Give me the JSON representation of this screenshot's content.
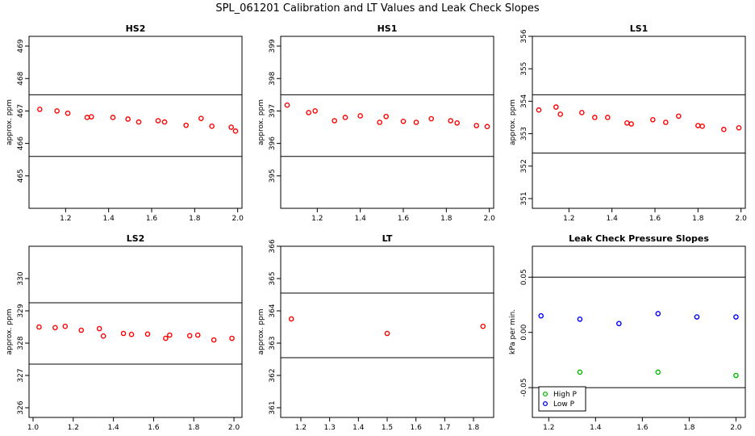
{
  "page_title": "SPL_061201  Calibration and LT Values and Leak Check Slopes",
  "chart_data": [
    {
      "type": "scatter",
      "title": "HS2",
      "ylabel": "approx. ppm",
      "xlim": [
        1.03,
        2.02
      ],
      "ylim": [
        464.0,
        469.3
      ],
      "xticks": [
        "1.2",
        "1.4",
        "1.6",
        "1.8",
        "2.0"
      ],
      "yticks": [
        "465",
        "466",
        "467",
        "468",
        "469"
      ],
      "hlines": [
        467.5,
        465.6
      ],
      "series": [
        {
          "color": "#ff0000",
          "x": [
            1.08,
            1.16,
            1.21,
            1.3,
            1.32,
            1.42,
            1.49,
            1.54,
            1.63,
            1.66,
            1.76,
            1.83,
            1.88,
            1.97,
            1.99
          ],
          "y": [
            467.05,
            467.0,
            466.93,
            466.8,
            466.82,
            466.8,
            466.75,
            466.66,
            466.7,
            466.66,
            466.56,
            466.77,
            466.53,
            466.5,
            466.38
          ]
        }
      ]
    },
    {
      "type": "scatter",
      "title": "HS1",
      "ylabel": "approx. ppm",
      "xlim": [
        1.03,
        2.02
      ],
      "ylim": [
        394.0,
        399.3
      ],
      "xticks": [
        "1.2",
        "1.4",
        "1.6",
        "1.8",
        "2.0"
      ],
      "yticks": [
        "395",
        "396",
        "397",
        "398",
        "399"
      ],
      "hlines": [
        397.5,
        395.6
      ],
      "series": [
        {
          "color": "#ff0000",
          "x": [
            1.06,
            1.16,
            1.19,
            1.28,
            1.33,
            1.4,
            1.49,
            1.52,
            1.6,
            1.66,
            1.73,
            1.82,
            1.85,
            1.94,
            1.99
          ],
          "y": [
            397.18,
            396.95,
            397.0,
            396.7,
            396.8,
            396.85,
            396.65,
            396.83,
            396.68,
            396.65,
            396.76,
            396.7,
            396.63,
            396.55,
            396.52
          ]
        }
      ]
    },
    {
      "type": "scatter",
      "title": "LS1",
      "ylabel": "approx. ppm",
      "xlim": [
        1.03,
        2.02
      ],
      "ylim": [
        350.7,
        356.0
      ],
      "xticks": [
        "1.2",
        "1.4",
        "1.6",
        "1.8",
        "2.0"
      ],
      "yticks": [
        "351",
        "352",
        "353",
        "354",
        "355",
        "356"
      ],
      "hlines": [
        354.2,
        352.4
      ],
      "series": [
        {
          "color": "#ff0000",
          "x": [
            1.06,
            1.14,
            1.16,
            1.26,
            1.32,
            1.38,
            1.47,
            1.49,
            1.59,
            1.65,
            1.71,
            1.8,
            1.82,
            1.92,
            1.99
          ],
          "y": [
            353.73,
            353.82,
            353.6,
            353.65,
            353.5,
            353.5,
            353.33,
            353.3,
            353.43,
            353.35,
            353.54,
            353.25,
            353.23,
            353.13,
            353.18
          ]
        }
      ]
    },
    {
      "type": "scatter",
      "title": "LS2",
      "ylabel": "approx. ppm",
      "xlim": [
        0.98,
        2.04
      ],
      "ylim": [
        325.7,
        331.0
      ],
      "xticks": [
        "1.0",
        "1.2",
        "1.4",
        "1.6",
        "1.8",
        "2.0"
      ],
      "yticks": [
        "326",
        "327",
        "328",
        "329",
        "330"
      ],
      "hlines": [
        329.25,
        327.35
      ],
      "series": [
        {
          "color": "#ff0000",
          "x": [
            1.03,
            1.11,
            1.16,
            1.24,
            1.33,
            1.35,
            1.45,
            1.49,
            1.57,
            1.66,
            1.68,
            1.78,
            1.82,
            1.9,
            1.99
          ],
          "y": [
            328.5,
            328.48,
            328.52,
            328.4,
            328.45,
            328.22,
            328.3,
            328.27,
            328.28,
            328.15,
            328.25,
            328.23,
            328.25,
            328.1,
            328.15
          ]
        }
      ]
    },
    {
      "type": "scatter",
      "title": "LT",
      "ylabel": "approx. ppm",
      "xlim": [
        1.13,
        1.87
      ],
      "ylim": [
        360.7,
        366.0
      ],
      "xticks": [
        "1.2",
        "1.3",
        "1.4",
        "1.5",
        "1.6",
        "1.7",
        "1.8"
      ],
      "yticks": [
        "361",
        "362",
        "363",
        "364",
        "365",
        "366"
      ],
      "hlines": [
        364.55,
        362.55
      ],
      "series": [
        {
          "color": "#ff0000",
          "x": [
            1.167,
            1.5,
            1.833
          ],
          "y": [
            363.75,
            363.3,
            363.52
          ]
        }
      ]
    },
    {
      "type": "scatter",
      "title": "Leak Check Pressure Slopes",
      "ylabel": "kPa per min.",
      "xlim": [
        1.13,
        2.04
      ],
      "ylim": [
        -0.077,
        0.078
      ],
      "xticks": [
        "1.2",
        "1.4",
        "1.6",
        "1.8",
        "2.0"
      ],
      "yticks": [
        "-0.05",
        "0.00",
        "0.05"
      ],
      "hlines": [
        0.05,
        -0.05
      ],
      "legend": "bottom-left",
      "series": [
        {
          "name": "High P",
          "color": "#00bb00",
          "x": [
            1.333,
            1.667,
            2.0
          ],
          "y": [
            -0.036,
            -0.036,
            -0.039
          ]
        },
        {
          "name": "Low P",
          "color": "#0000ff",
          "x": [
            1.167,
            1.333,
            1.5,
            1.667,
            1.833,
            2.0
          ],
          "y": [
            0.015,
            0.012,
            0.008,
            0.017,
            0.014,
            0.014
          ]
        }
      ]
    }
  ]
}
